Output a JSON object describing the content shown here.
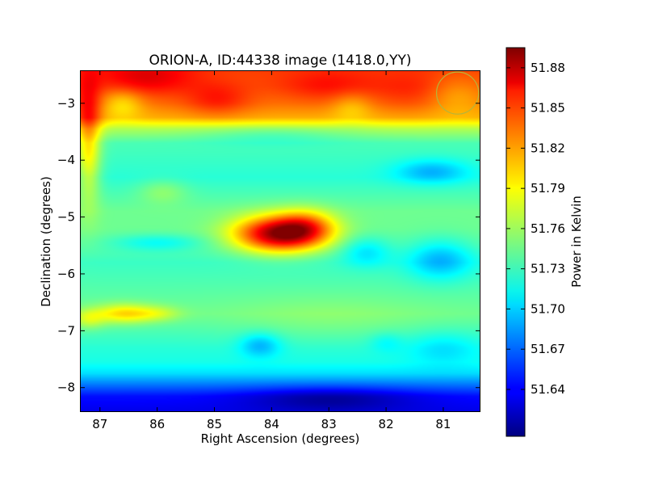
{
  "chart_data": {
    "type": "heatmap",
    "title": "ORION-A, ID:44338 image (1418.0,YY)",
    "xlabel": "Right Ascension (degrees)",
    "ylabel": "Declination (degrees)",
    "xlim": [
      87.35,
      80.35
    ],
    "ylim": [
      -8.43,
      -2.42
    ],
    "x_ticks": [
      87,
      86,
      85,
      84,
      83,
      82,
      81
    ],
    "x_tick_labels": [
      "87",
      "86",
      "85",
      "84",
      "83",
      "82",
      "81"
    ],
    "y_ticks": [
      -3,
      -4,
      -5,
      -6,
      -7,
      -8
    ],
    "y_tick_labels": [
      "−3",
      "−4",
      "−5",
      "−6",
      "−7",
      "−8"
    ],
    "colorbar": {
      "label": "Power in Kelvin",
      "range": [
        51.605,
        51.895
      ],
      "ticks": [
        51.64,
        51.67,
        51.7,
        51.73,
        51.76,
        51.79,
        51.82,
        51.85,
        51.88
      ],
      "tick_labels": [
        "51.64",
        "51.67",
        "51.70",
        "51.73",
        "51.76",
        "51.79",
        "51.82",
        "51.85",
        "51.88"
      ]
    },
    "colormap": "jet",
    "beam_marker": {
      "ra": 80.75,
      "dec": -2.82,
      "radius_deg": 0.37,
      "color": "#b5b53a"
    },
    "dec_profile": [
      [
        -2.42,
        51.84
      ],
      [
        -2.7,
        51.835
      ],
      [
        -3.0,
        51.825
      ],
      [
        -3.25,
        51.81
      ],
      [
        -3.45,
        51.765
      ],
      [
        -3.7,
        51.735
      ],
      [
        -4.0,
        51.73
      ],
      [
        -4.3,
        51.725
      ],
      [
        -4.6,
        51.735
      ],
      [
        -4.9,
        51.745
      ],
      [
        -5.2,
        51.745
      ],
      [
        -5.5,
        51.74
      ],
      [
        -5.8,
        51.73
      ],
      [
        -6.1,
        51.735
      ],
      [
        -6.4,
        51.74
      ],
      [
        -6.7,
        51.745
      ],
      [
        -7.0,
        51.735
      ],
      [
        -7.3,
        51.725
      ],
      [
        -7.55,
        51.72
      ],
      [
        -7.75,
        51.705
      ],
      [
        -7.95,
        51.675
      ],
      [
        -8.15,
        51.645
      ],
      [
        -8.43,
        51.635
      ]
    ],
    "features": [
      {
        "ra": 83.85,
        "dec": -5.3,
        "sra": 0.55,
        "sdec": 0.22,
        "amp": 0.145
      },
      {
        "ra": 83.4,
        "dec": -5.15,
        "sra": 0.35,
        "sdec": 0.2,
        "amp": 0.05
      },
      {
        "ra": 86.2,
        "dec": -2.55,
        "sra": 0.6,
        "sdec": 0.22,
        "amp": 0.03
      },
      {
        "ra": 84.95,
        "dec": -2.95,
        "sra": 0.4,
        "sdec": 0.2,
        "amp": 0.025
      },
      {
        "ra": 83.0,
        "dec": -2.7,
        "sra": 0.6,
        "sdec": 0.2,
        "amp": 0.02
      },
      {
        "ra": 81.5,
        "dec": -2.8,
        "sra": 0.5,
        "sdec": 0.25,
        "amp": 0.015
      },
      {
        "ra": 86.6,
        "dec": -3.0,
        "sra": 0.25,
        "sdec": 0.18,
        "amp": -0.03
      },
      {
        "ra": 82.6,
        "dec": -3.05,
        "sra": 0.25,
        "sdec": 0.18,
        "amp": -0.02
      },
      {
        "ra": 80.8,
        "dec": -2.85,
        "sra": 0.35,
        "sdec": 0.25,
        "amp": -0.02
      },
      {
        "ra": 87.2,
        "dec": -3.7,
        "sra": 0.15,
        "sdec": 0.7,
        "amp": 0.06
      },
      {
        "ra": 86.6,
        "dec": -6.7,
        "sra": 0.35,
        "sdec": 0.12,
        "amp": 0.05
      },
      {
        "ra": 86.0,
        "dec": -6.7,
        "sra": 0.3,
        "sdec": 0.1,
        "amp": 0.025
      },
      {
        "ra": 87.2,
        "dec": -6.8,
        "sra": 0.2,
        "sdec": 0.12,
        "amp": 0.03
      },
      {
        "ra": 85.9,
        "dec": -4.55,
        "sra": 0.3,
        "sdec": 0.15,
        "amp": 0.02
      },
      {
        "ra": 81.2,
        "dec": -4.2,
        "sra": 0.45,
        "sdec": 0.15,
        "amp": -0.035
      },
      {
        "ra": 82.35,
        "dec": -5.6,
        "sra": 0.3,
        "sdec": 0.18,
        "amp": -0.03
      },
      {
        "ra": 81.05,
        "dec": -5.75,
        "sra": 0.4,
        "sdec": 0.25,
        "amp": -0.04
      },
      {
        "ra": 86.0,
        "dec": -5.45,
        "sra": 0.55,
        "sdec": 0.1,
        "amp": -0.025
      },
      {
        "ra": 84.2,
        "dec": -7.25,
        "sra": 0.25,
        "sdec": 0.15,
        "amp": -0.035
      },
      {
        "ra": 81.0,
        "dec": -7.3,
        "sra": 0.45,
        "sdec": 0.2,
        "amp": -0.02
      },
      {
        "ra": 82.0,
        "dec": -7.2,
        "sra": 0.2,
        "sdec": 0.12,
        "amp": -0.015
      },
      {
        "ra": 84.0,
        "dec": -3.55,
        "sra": 0.9,
        "sdec": 0.12,
        "amp": -0.015
      },
      {
        "ra": 83.0,
        "dec": -8.2,
        "sra": 1.0,
        "sdec": 0.15,
        "amp": -0.03
      },
      {
        "ra": 83.0,
        "dec": -6.8,
        "sra": 1.2,
        "sdec": 0.3,
        "amp": 0.01
      }
    ]
  }
}
